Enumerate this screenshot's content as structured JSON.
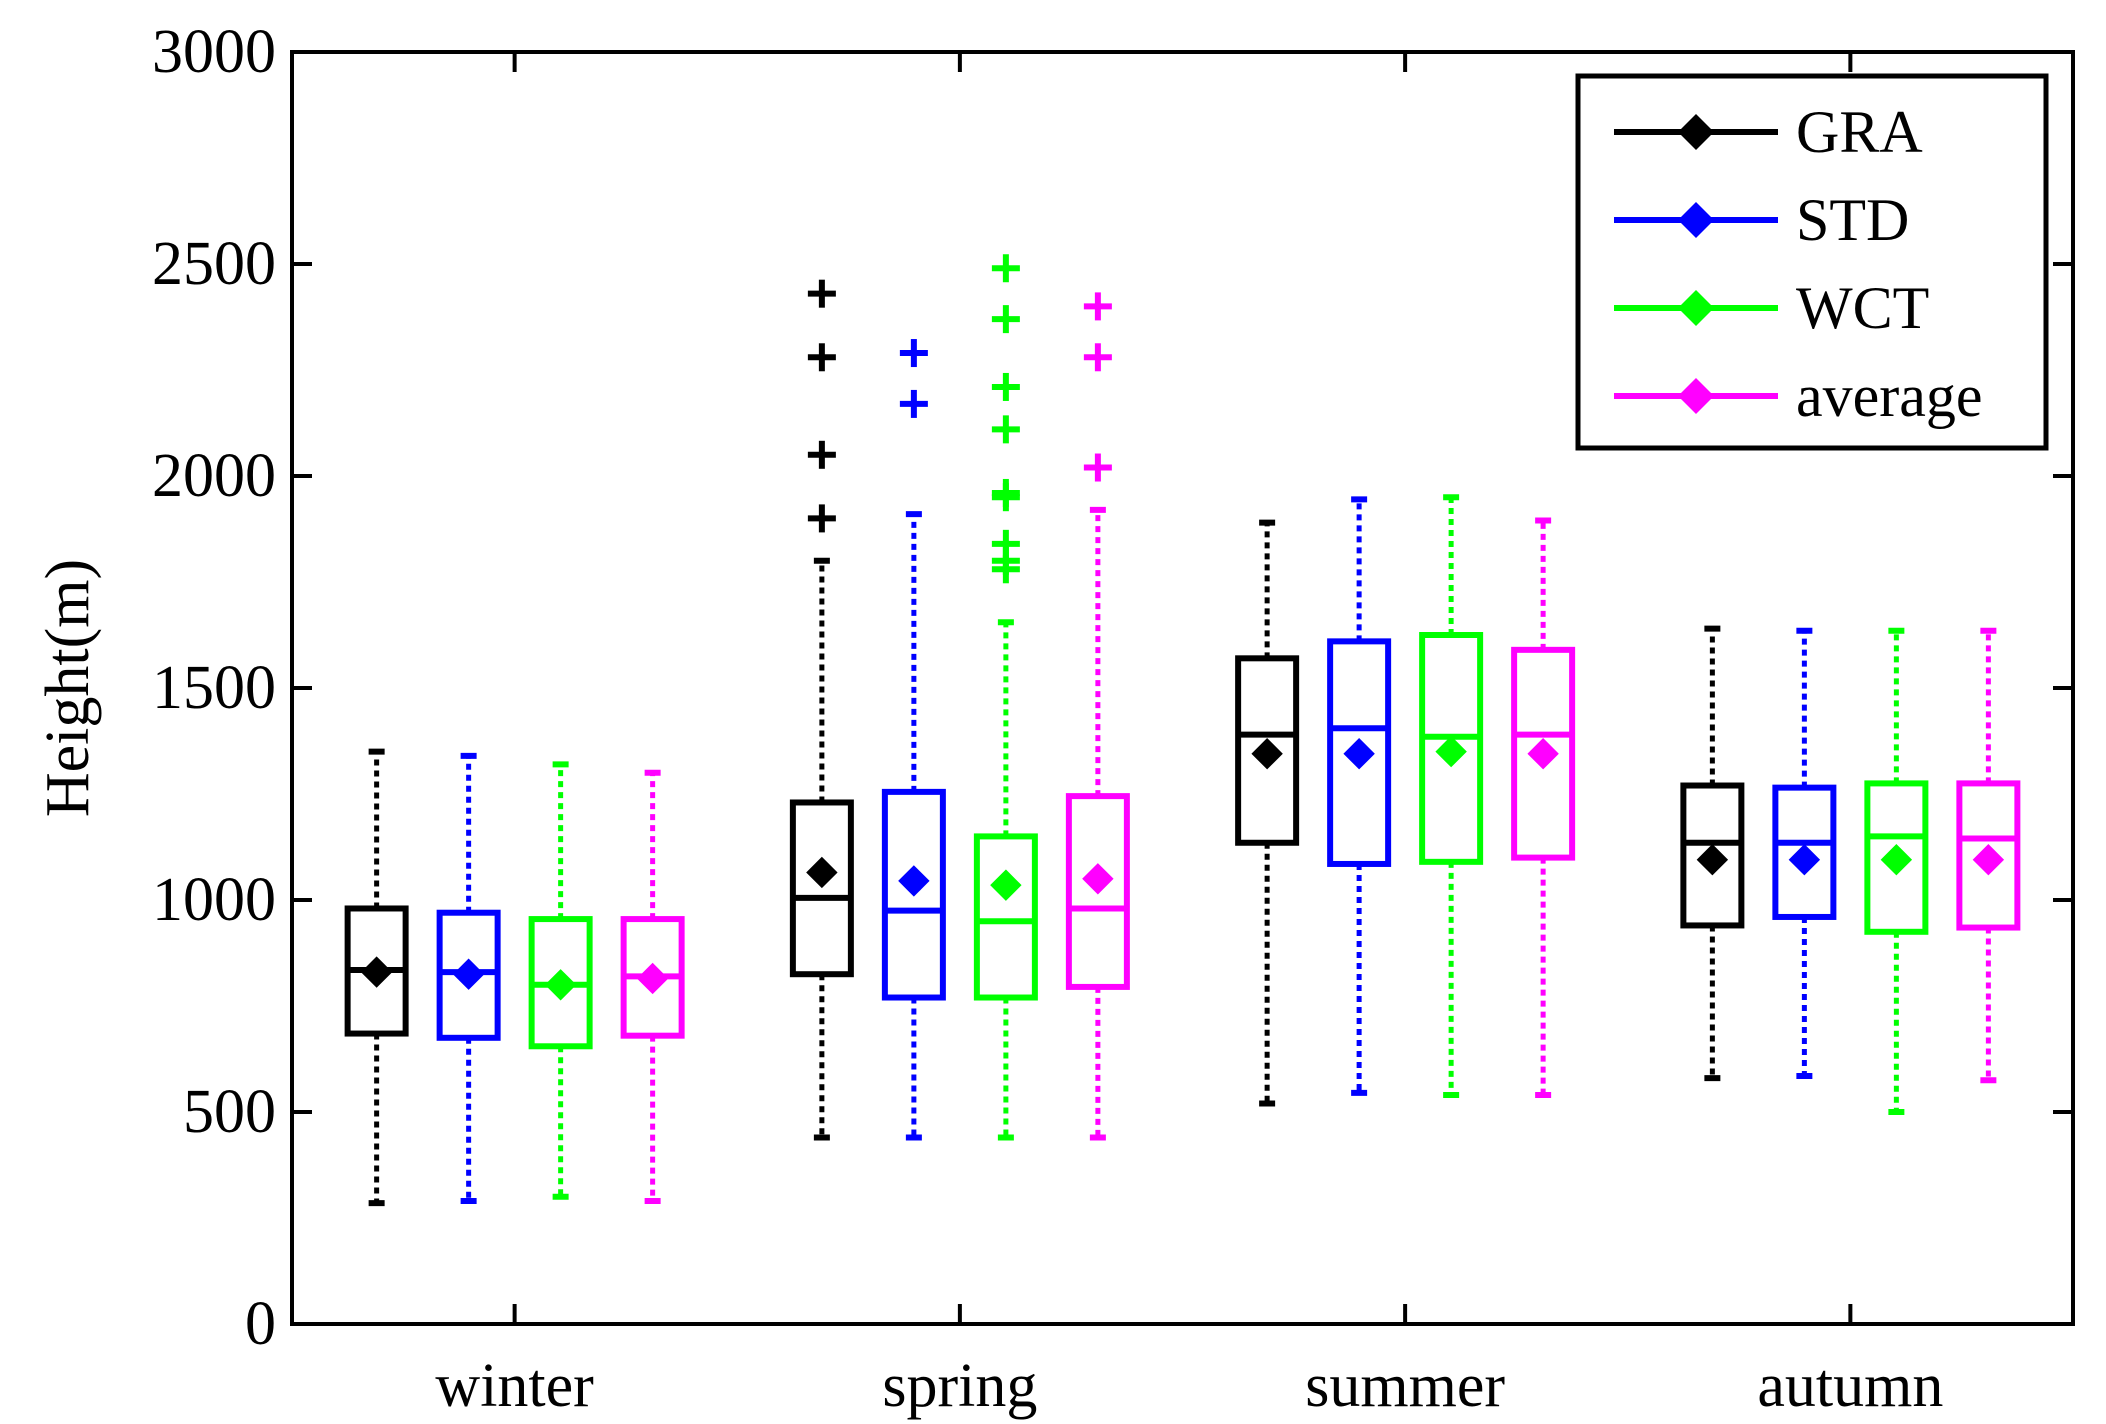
{
  "chart_data": {
    "type": "box",
    "title": "",
    "xlabel": "",
    "ylabel": "Height(m)",
    "ylim": [
      0,
      3000
    ],
    "yticks": [
      0,
      500,
      1000,
      1500,
      2000,
      2500,
      3000
    ],
    "ytick_labels": [
      "0",
      "500",
      "1000",
      "1500",
      "2000",
      "2500",
      "3000"
    ],
    "categories": [
      "winter",
      "spring",
      "summer",
      "autumn"
    ],
    "legend_position": "top-right",
    "series": [
      {
        "name": "GRA",
        "color": "#000000",
        "boxes": [
          {
            "lower_whisker": 285,
            "q1": 685,
            "median": 835,
            "q3": 980,
            "upper_whisker": 1350,
            "mean": 830,
            "outliers": []
          },
          {
            "lower_whisker": 440,
            "q1": 825,
            "median": 1005,
            "q3": 1230,
            "upper_whisker": 1800,
            "mean": 1065,
            "outliers": [
              1900,
              2050,
              2280,
              2430
            ]
          },
          {
            "lower_whisker": 520,
            "q1": 1135,
            "median": 1390,
            "q3": 1570,
            "upper_whisker": 1890,
            "mean": 1345,
            "outliers": []
          },
          {
            "lower_whisker": 580,
            "q1": 940,
            "median": 1135,
            "q3": 1270,
            "upper_whisker": 1640,
            "mean": 1095,
            "outliers": []
          }
        ]
      },
      {
        "name": "STD",
        "color": "#0000ff",
        "boxes": [
          {
            "lower_whisker": 290,
            "q1": 675,
            "median": 830,
            "q3": 970,
            "upper_whisker": 1340,
            "mean": 825,
            "outliers": []
          },
          {
            "lower_whisker": 440,
            "q1": 770,
            "median": 975,
            "q3": 1255,
            "upper_whisker": 1910,
            "mean": 1045,
            "outliers": [
              2170,
              2290
            ]
          },
          {
            "lower_whisker": 545,
            "q1": 1085,
            "median": 1405,
            "q3": 1610,
            "upper_whisker": 1945,
            "mean": 1345,
            "outliers": []
          },
          {
            "lower_whisker": 585,
            "q1": 960,
            "median": 1135,
            "q3": 1265,
            "upper_whisker": 1635,
            "mean": 1095,
            "outliers": []
          }
        ]
      },
      {
        "name": "WCT",
        "color": "#00ff00",
        "boxes": [
          {
            "lower_whisker": 300,
            "q1": 655,
            "median": 800,
            "q3": 955,
            "upper_whisker": 1320,
            "mean": 800,
            "outliers": []
          },
          {
            "lower_whisker": 440,
            "q1": 770,
            "median": 950,
            "q3": 1150,
            "upper_whisker": 1655,
            "mean": 1035,
            "outliers": [
              1780,
              1800,
              1840,
              1950,
              1960,
              2110,
              2210,
              2370,
              2490
            ]
          },
          {
            "lower_whisker": 540,
            "q1": 1090,
            "median": 1385,
            "q3": 1625,
            "upper_whisker": 1950,
            "mean": 1350,
            "outliers": []
          },
          {
            "lower_whisker": 500,
            "q1": 925,
            "median": 1150,
            "q3": 1275,
            "upper_whisker": 1635,
            "mean": 1095,
            "outliers": []
          }
        ]
      },
      {
        "name": "average",
        "color": "#ff00ff",
        "boxes": [
          {
            "lower_whisker": 290,
            "q1": 680,
            "median": 820,
            "q3": 955,
            "upper_whisker": 1300,
            "mean": 815,
            "outliers": []
          },
          {
            "lower_whisker": 440,
            "q1": 795,
            "median": 980,
            "q3": 1245,
            "upper_whisker": 1920,
            "mean": 1050,
            "outliers": [
              2020,
              2280,
              2400
            ]
          },
          {
            "lower_whisker": 540,
            "q1": 1100,
            "median": 1390,
            "q3": 1590,
            "upper_whisker": 1895,
            "mean": 1345,
            "outliers": []
          },
          {
            "lower_whisker": 575,
            "q1": 935,
            "median": 1145,
            "q3": 1275,
            "upper_whisker": 1635,
            "mean": 1095,
            "outliers": []
          }
        ]
      }
    ]
  }
}
